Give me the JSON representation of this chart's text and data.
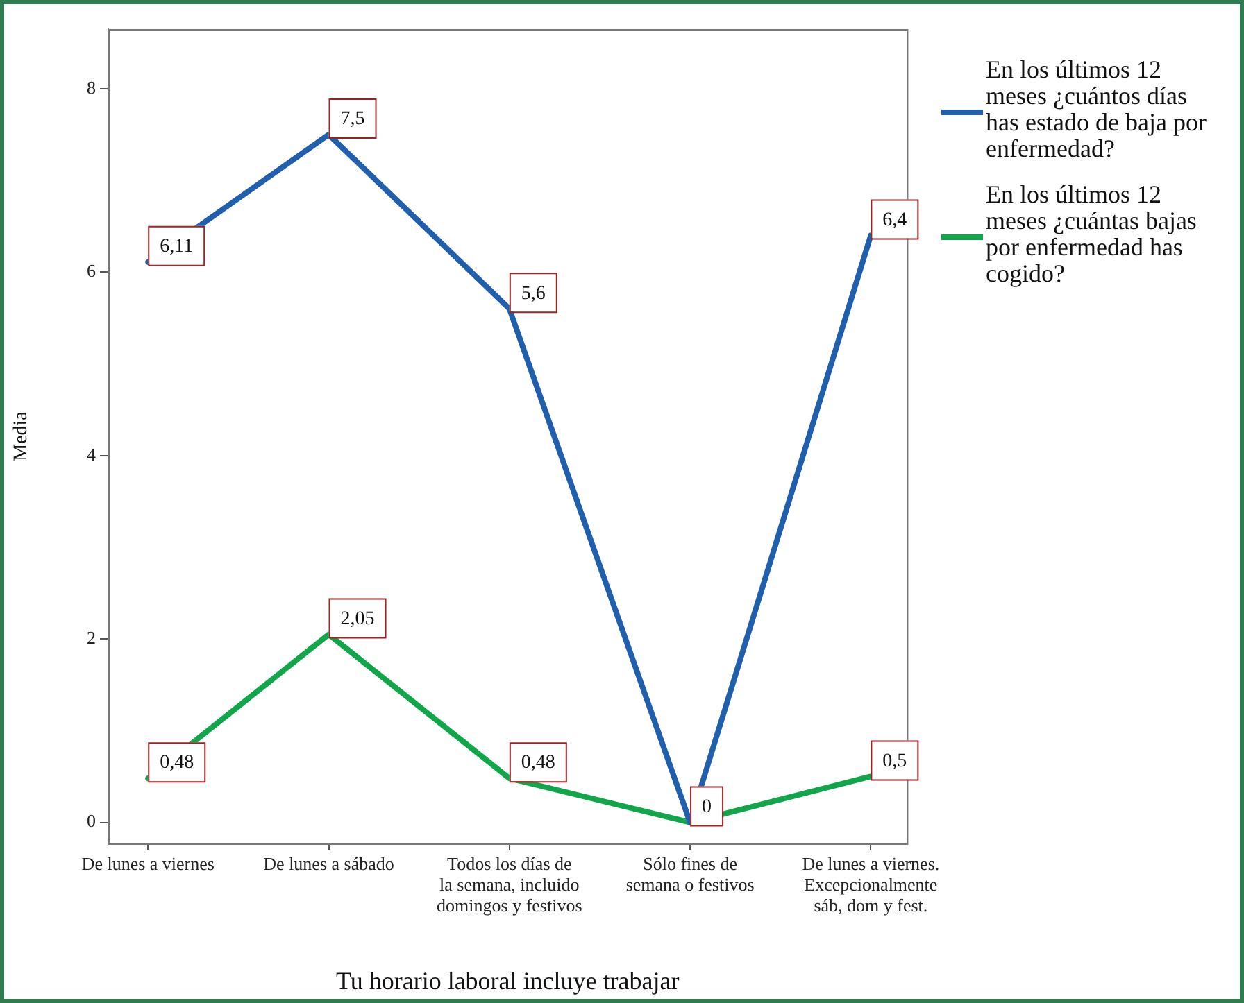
{
  "chart_data": {
    "type": "line",
    "xlabel": "Tu horario laboral incluye trabajar",
    "ylabel": "Media",
    "categories": [
      "De lunes a viernes",
      "De lunes a sábado",
      "Todos los días de la semana, incluido domingos y festivos",
      "Sólo fines de semana o festivos",
      "De lunes a viernes. Excepcionalmente sáb, dom y fest."
    ],
    "series": [
      {
        "name": "En los últimos 12 meses ¿cuántos días has estado de baja por enfermedad?",
        "color": "#1f5fae",
        "values": [
          6.11,
          7.5,
          5.6,
          0,
          6.4
        ],
        "value_labels": [
          "6,11",
          "7,5",
          "5,6",
          null,
          "6,4"
        ]
      },
      {
        "name": "En los últimos 12 meses ¿cuántas bajas por enfermedad has cogido?",
        "color": "#12a64a",
        "values": [
          0.48,
          2.05,
          0.48,
          0,
          0.5
        ],
        "value_labels": [
          "0,48",
          "2,05",
          "0,48",
          "0",
          "0,5"
        ]
      }
    ],
    "ylim": [
      -0.23,
      8.65
    ],
    "yticks": [
      0,
      2,
      4,
      6,
      8
    ],
    "grid": false,
    "legend": "right",
    "marker": "none"
  }
}
